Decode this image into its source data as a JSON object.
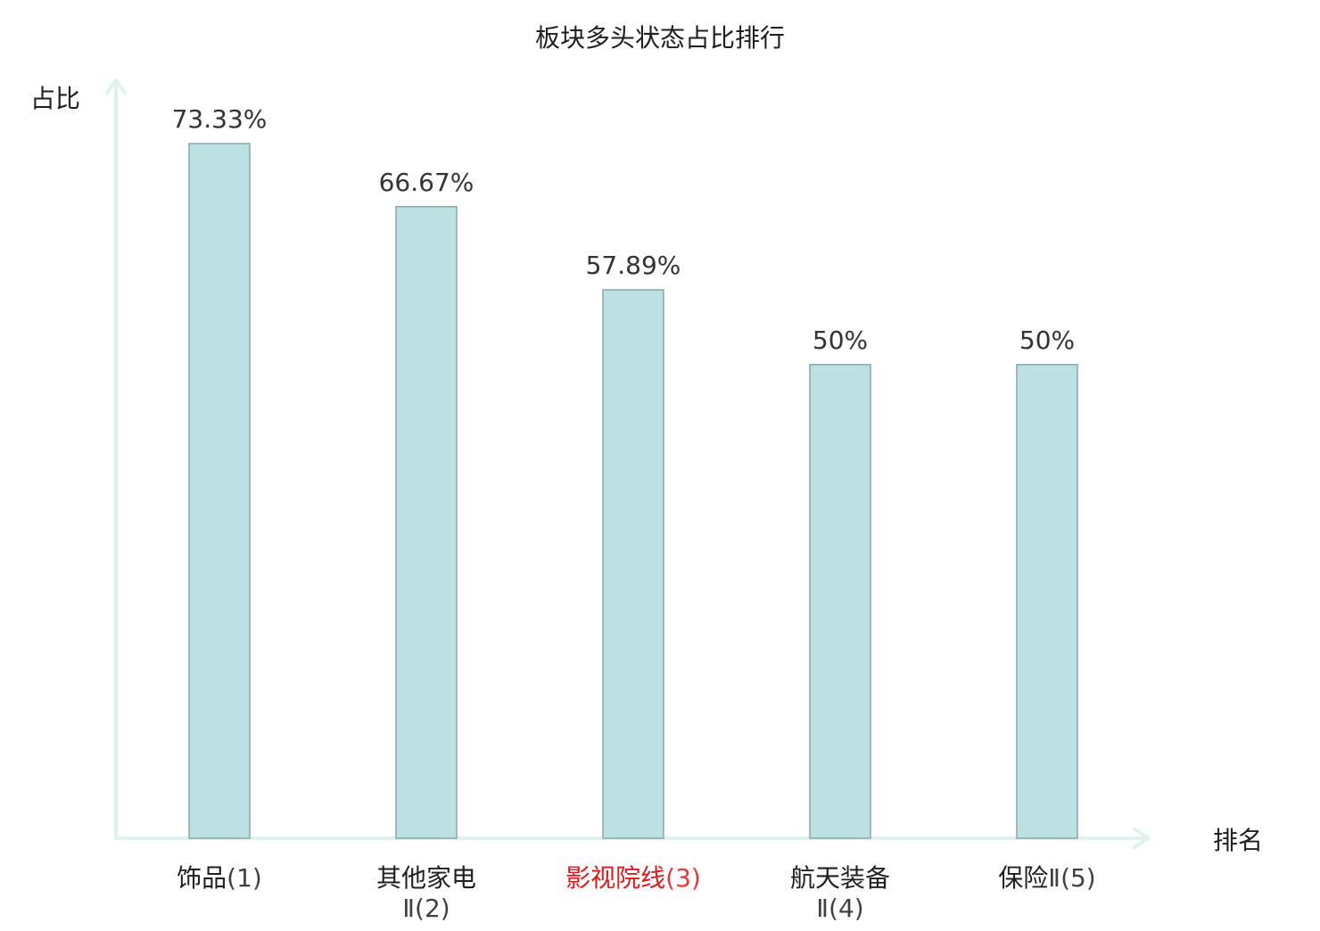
{
  "chart_data": {
    "type": "bar",
    "title": "板块多头状态占比排行",
    "xlabel": "排名",
    "ylabel": "占比",
    "ylim": [
      0,
      80
    ],
    "grid": false,
    "legend": "none",
    "categories": [
      {
        "name_lines": [
          "饰品"
        ],
        "rank": "(1)",
        "rank_inline": true,
        "highlight": false
      },
      {
        "name_lines": [
          "其他家电"
        ],
        "rank": "Ⅱ(2)",
        "rank_inline": false,
        "highlight": false
      },
      {
        "name_lines": [
          "影视院线"
        ],
        "rank": "(3)",
        "rank_inline": true,
        "highlight": true
      },
      {
        "name_lines": [
          "航天装备"
        ],
        "rank": "Ⅱ(4)",
        "rank_inline": false,
        "highlight": false
      },
      {
        "name_lines": [
          "保险"
        ],
        "rank": "Ⅱ(5)",
        "rank_inline": true,
        "highlight": false
      }
    ],
    "values": [
      73.33,
      66.67,
      57.89,
      50,
      50
    ],
    "value_labels": [
      "73.33%",
      "66.67%",
      "57.89%",
      "50%",
      "50%"
    ],
    "colors": {
      "bar_fill": "#bde1e3",
      "bar_stroke": "#8aa6a7",
      "axis": "#def2ef",
      "label_default": "#1f1f1f",
      "label_highlight": "#e0191c"
    }
  }
}
